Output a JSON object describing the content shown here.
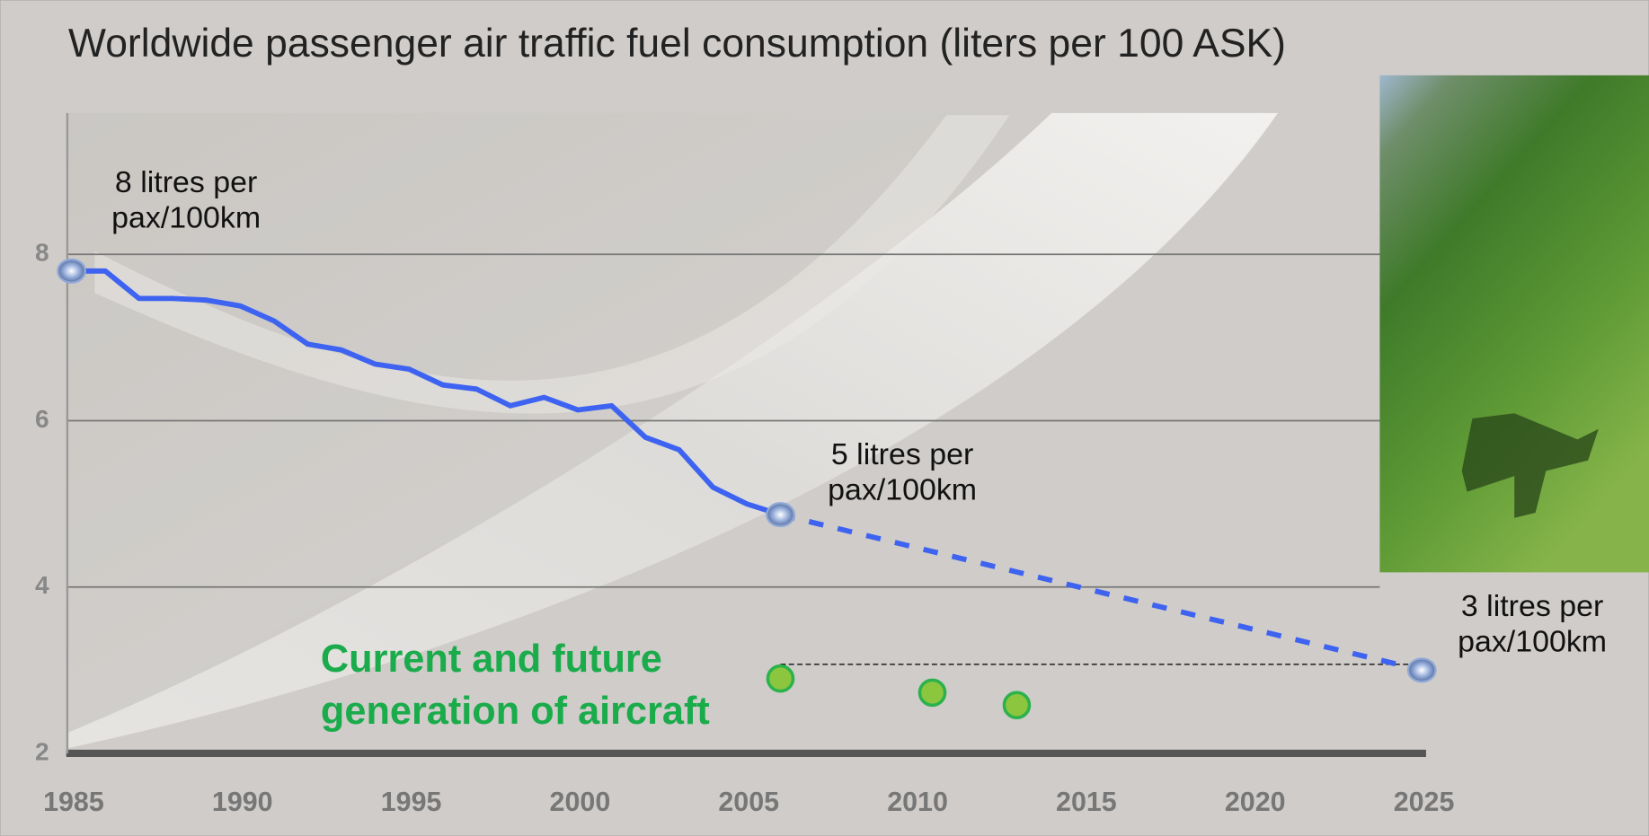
{
  "chart_data": {
    "type": "line",
    "title": "Worldwide passenger air traffic fuel consumption (liters per 100 ASK)",
    "x": [
      1985,
      1986,
      1987,
      1988,
      1989,
      1990,
      1991,
      1992,
      1993,
      1994,
      1995,
      1996,
      1997,
      1998,
      1999,
      2000,
      2001,
      2002,
      2003,
      2004,
      2005,
      2006
    ],
    "series": [
      {
        "color": "#3d63f0",
        "values": [
          7.8,
          7.8,
          7.47,
          7.47,
          7.45,
          7.38,
          7.2,
          6.92,
          6.85,
          6.68,
          6.62,
          6.43,
          6.38,
          6.18,
          6.28,
          6.13,
          6.18,
          5.8,
          5.65,
          5.2,
          5.0,
          4.87
        ]
      }
    ],
    "projection": {
      "color": "#3d63f0",
      "dashed": true,
      "x": [
        2006,
        2025
      ],
      "values": [
        4.87,
        3.0
      ]
    },
    "markers": {
      "color": "#8fa8d8",
      "x": [
        1985,
        2006,
        2025
      ],
      "values": [
        7.8,
        4.87,
        3.0
      ]
    },
    "aircraft": {
      "color": "#8cc63f",
      "x": [
        2006,
        2010.5,
        2013
      ],
      "values": [
        2.9,
        2.73,
        2.58
      ]
    },
    "reference_line": {
      "x": [
        2006,
        2025
      ],
      "values": [
        3.07,
        3.07
      ]
    },
    "annotations": [
      {
        "lines": [
          "8 litres per",
          "pax/100km"
        ]
      },
      {
        "lines": [
          "5 litres per",
          "pax/100km"
        ]
      },
      {
        "lines": [
          "3 litres per",
          "pax/100km"
        ]
      },
      {
        "lines": [
          "Current and future",
          "generation of aircraft"
        ],
        "color": "#1aab4b"
      }
    ],
    "xlim": [
      1985,
      2025
    ],
    "ylim": [
      2,
      9.7
    ],
    "xticks": [
      1985,
      1990,
      1995,
      2000,
      2005,
      2010,
      2015,
      2020,
      2025
    ],
    "yticks": [
      2,
      4,
      6,
      8
    ],
    "grid": true
  }
}
